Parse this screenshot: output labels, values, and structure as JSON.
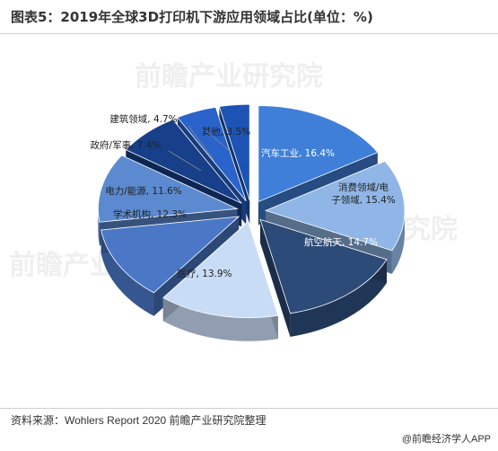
{
  "page": {
    "title": "图表5：2019年全球3D打印机下游应用领域占比(单位：%)",
    "source": "资料来源：Wohlers Report 2020 前瞻产业研究院整理",
    "credit": "@前瞻经济学人APP",
    "watermark": "前瞻产业研究院"
  },
  "chart_data": {
    "type": "pie",
    "style": "exploded 3d pie",
    "title": "",
    "categories": [
      "汽车工业",
      "消费领域/电子领域",
      "航空航天",
      "医疗",
      "学术机构",
      "电力/能源",
      "政府/军事",
      "建筑领域",
      "其他"
    ],
    "values": [
      16.4,
      15.4,
      14.7,
      13.9,
      12.3,
      11.6,
      7.4,
      4.7,
      3.5
    ],
    "labels": [
      "汽车工业, 16.4%",
      "消费领域/电子领域, 15.4%",
      "航空航天, 14.7%",
      "医疗, 13.9%",
      "学术机构, 12.3%",
      "电力/能源, 11.6%",
      "政府/军事, 7.4%",
      "建筑领域, 4.7%",
      "其他, 3.5%"
    ],
    "colors": [
      "#3f7fd8",
      "#8fb6e6",
      "#2d4b78",
      "#c9dcf6",
      "#4a78c6",
      "#5c8ad0",
      "#173f8a",
      "#2a63c9",
      "#1d54b4"
    ],
    "legend": "none"
  }
}
